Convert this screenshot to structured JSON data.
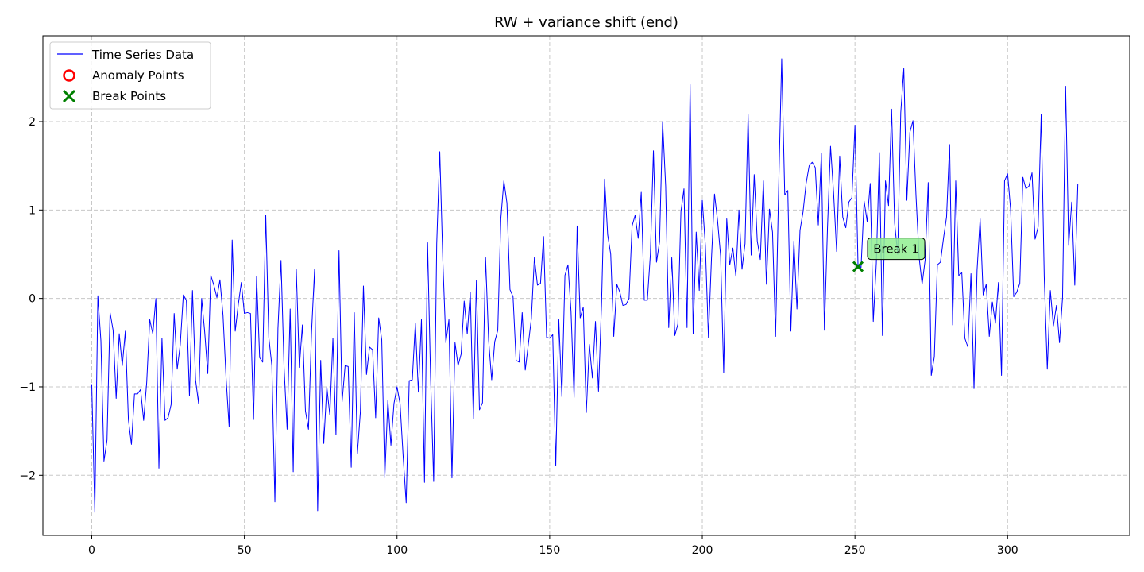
{
  "chart_data": {
    "type": "line",
    "title": "RW + variance shift (end)",
    "xlabel": "",
    "ylabel": "",
    "xlim": [
      -16,
      340
    ],
    "ylim": [
      -2.68,
      2.97
    ],
    "x_ticks": [
      0,
      50,
      100,
      150,
      200,
      250,
      300
    ],
    "y_ticks": [
      -2,
      -1,
      0,
      1,
      2
    ],
    "x_tick_labels": [
      "0",
      "50",
      "100",
      "150",
      "200",
      "250",
      "300"
    ],
    "y_tick_labels": [
      "−2",
      "−1",
      "0",
      "1",
      "2"
    ],
    "grid": true,
    "legend_position": "top-left",
    "legend": [
      {
        "label": "Time Series Data",
        "marker": "line",
        "color": "#0000ff"
      },
      {
        "label": "Anomaly Points",
        "marker": "circle",
        "color": "#ff0000"
      },
      {
        "label": "Break Points",
        "marker": "x",
        "color": "#008000"
      }
    ],
    "series": [
      {
        "name": "Time Series Data",
        "color": "#0000ff",
        "x_start": 0,
        "x_step": 1,
        "values": [
          -0.97,
          -2.42,
          0.03,
          -0.48,
          -1.84,
          -1.6,
          -0.16,
          -0.36,
          -1.13,
          -0.4,
          -0.76,
          -0.37,
          -1.37,
          -1.65,
          -1.08,
          -1.08,
          -1.03,
          -1.38,
          -0.95,
          -0.24,
          -0.4,
          0.0,
          -1.92,
          -0.45,
          -1.38,
          -1.35,
          -1.2,
          -0.17,
          -0.8,
          -0.52,
          0.04,
          -0.02,
          -1.1,
          0.09,
          -0.92,
          -1.19,
          0.0,
          -0.38,
          -0.85,
          0.26,
          0.15,
          0.01,
          0.21,
          -0.19,
          -0.9,
          -1.45,
          0.66,
          -0.37,
          -0.07,
          0.18,
          -0.17,
          -0.16,
          -0.17,
          -1.37,
          0.25,
          -0.67,
          -0.72,
          0.94,
          -0.44,
          -0.76,
          -2.3,
          -0.34,
          0.43,
          -0.78,
          -1.48,
          -0.12,
          -1.96,
          0.33,
          -0.78,
          -0.3,
          -1.27,
          -1.48,
          -0.38,
          0.33,
          -2.4,
          -0.7,
          -1.64,
          -1.0,
          -1.32,
          -0.45,
          -1.54,
          0.54,
          -1.17,
          -0.76,
          -0.77,
          -1.91,
          -0.16,
          -1.76,
          -1.28,
          0.14,
          -0.86,
          -0.55,
          -0.58,
          -1.35,
          -0.22,
          -0.47,
          -2.03,
          -1.15,
          -1.66,
          -1.19,
          -1.0,
          -1.19,
          -1.78,
          -2.31,
          -0.93,
          -0.92,
          -0.28,
          -1.06,
          -0.24,
          -2.08,
          0.63,
          -0.9,
          -2.07,
          0.62,
          1.66,
          0.43,
          -0.5,
          -0.24,
          -2.03,
          -0.5,
          -0.76,
          -0.63,
          -0.03,
          -0.4,
          0.07,
          -1.36,
          0.2,
          -1.26,
          -1.18,
          0.46,
          -0.47,
          -0.92,
          -0.49,
          -0.36,
          0.9,
          1.33,
          1.08,
          0.1,
          0.02,
          -0.7,
          -0.72,
          -0.16,
          -0.81,
          -0.52,
          -0.23,
          0.46,
          0.15,
          0.17,
          0.7,
          -0.44,
          -0.45,
          -0.41,
          -1.89,
          -0.24,
          -1.11,
          0.26,
          0.38,
          -0.15,
          -1.12,
          0.82,
          -0.22,
          -0.1,
          -1.29,
          -0.52,
          -0.9,
          -0.26,
          -1.05,
          -0.06,
          1.35,
          0.72,
          0.5,
          -0.43,
          0.16,
          0.07,
          -0.08,
          -0.07,
          0.0,
          0.82,
          0.94,
          0.68,
          1.2,
          -0.02,
          -0.02,
          0.5,
          1.67,
          0.41,
          0.64,
          2.0,
          1.27,
          -0.33,
          0.46,
          -0.42,
          -0.29,
          0.98,
          1.24,
          -0.33,
          2.42,
          -0.4,
          0.75,
          0.09,
          1.11,
          0.6,
          -0.44,
          0.45,
          1.18,
          0.88,
          0.48,
          -0.84,
          0.9,
          0.38,
          0.57,
          0.25,
          1.0,
          0.33,
          0.62,
          2.08,
          0.49,
          1.4,
          0.65,
          0.44,
          1.33,
          0.16,
          1.01,
          0.75,
          -0.43,
          1.23,
          2.71,
          1.17,
          1.22,
          -0.37,
          0.65,
          -0.12,
          0.77,
          0.98,
          1.3,
          1.5,
          1.54,
          1.48,
          0.83,
          1.64,
          -0.36,
          0.8,
          1.72,
          1.19,
          0.53,
          1.61,
          0.92,
          0.8,
          1.09,
          1.14,
          1.96,
          0.38,
          0.35,
          1.1,
          0.87,
          1.3,
          -0.26,
          0.4,
          1.65,
          -0.42,
          1.33,
          1.05,
          2.14,
          0.85,
          0.5,
          2.1,
          2.6,
          1.11,
          1.88,
          2.01,
          1.16,
          0.47,
          0.16,
          0.44,
          1.31,
          -0.87,
          -0.66,
          0.38,
          0.41,
          0.68,
          0.92,
          1.74,
          -0.3,
          1.33,
          0.26,
          0.29,
          -0.45,
          -0.55,
          0.28,
          -1.02,
          0.32,
          0.9,
          0.04,
          0.16,
          -0.43,
          -0.04,
          -0.28,
          0.18,
          -0.87,
          1.33,
          1.41,
          1.0,
          0.02,
          0.07,
          0.17,
          1.37,
          1.24,
          1.27,
          1.42,
          0.67,
          0.81,
          2.08,
          0.25,
          -0.8,
          0.09,
          -0.31,
          -0.08,
          -0.5,
          0.01,
          2.4,
          0.6,
          1.09,
          0.15,
          1.29
        ]
      }
    ],
    "anomaly_points": [],
    "break_points": [
      {
        "x": 251,
        "y": 0.36,
        "label": "Break 1"
      }
    ]
  },
  "colors": {
    "line": "#0000ff",
    "break_marker": "#008000",
    "anomaly_marker": "#ff0000",
    "annotation_fill": "#90ee90",
    "grid": "#c8c8c8"
  }
}
